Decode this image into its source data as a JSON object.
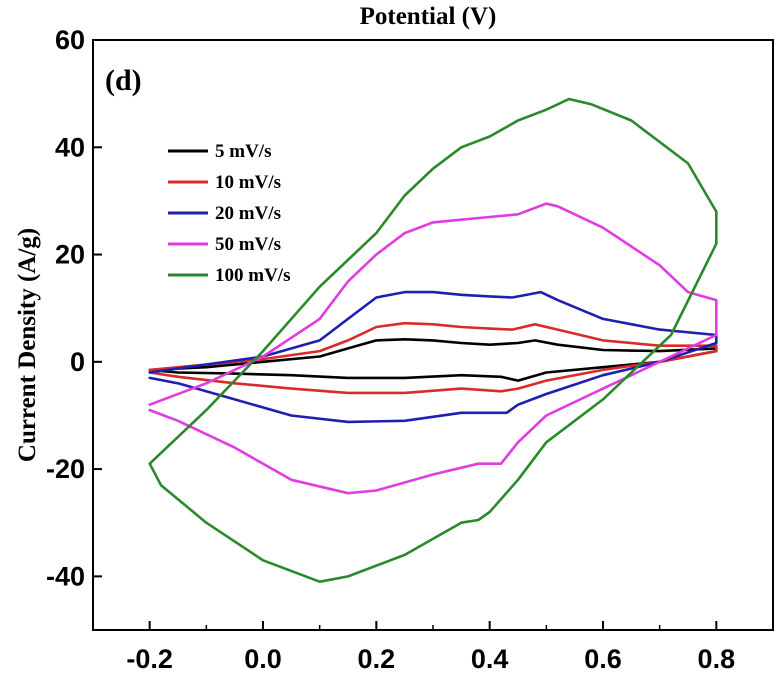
{
  "chart_data": {
    "type": "line",
    "title": "Potential (V)",
    "panel_label": "(d)",
    "xlabel": "",
    "ylabel": "Current Density (A/g)",
    "xlim": [
      -0.3,
      0.9
    ],
    "ylim": [
      -50,
      60
    ],
    "x_ticks": [
      -0.2,
      0.0,
      0.2,
      0.4,
      0.6,
      0.8
    ],
    "x_tick_labels": [
      "-0.2",
      "0.0",
      "0.2",
      "0.4",
      "0.6",
      "0.8"
    ],
    "y_ticks": [
      60,
      40,
      20,
      0,
      -20,
      -40
    ],
    "y_tick_labels": [
      "60",
      "40",
      "20",
      "0",
      "-20",
      "-40"
    ],
    "legend_position": "upper-left",
    "series": [
      {
        "name": "5 mV/s",
        "color": "#000000",
        "x": [
          -0.2,
          -0.1,
          0.0,
          0.1,
          0.15,
          0.2,
          0.25,
          0.3,
          0.35,
          0.4,
          0.45,
          0.48,
          0.52,
          0.6,
          0.7,
          0.8,
          0.8,
          0.7,
          0.6,
          0.5,
          0.45,
          0.42,
          0.35,
          0.25,
          0.15,
          0.05,
          -0.05,
          -0.15,
          -0.2
        ],
        "y": [
          -1.5,
          -1,
          0,
          1,
          2.5,
          4,
          4.2,
          4,
          3.5,
          3.2,
          3.5,
          4,
          3.2,
          2.2,
          2,
          2.5,
          2,
          0,
          -1,
          -2,
          -3.5,
          -2.8,
          -2.5,
          -3,
          -3,
          -2.5,
          -2.2,
          -2,
          -1.5
        ]
      },
      {
        "name": "10 mV/s",
        "color": "#d92b2b",
        "x": [
          -0.2,
          -0.1,
          0.0,
          0.1,
          0.15,
          0.2,
          0.25,
          0.3,
          0.35,
          0.4,
          0.44,
          0.48,
          0.52,
          0.6,
          0.7,
          0.8,
          0.8,
          0.7,
          0.6,
          0.5,
          0.45,
          0.42,
          0.35,
          0.25,
          0.15,
          0.05,
          -0.05,
          -0.15,
          -0.2
        ],
        "y": [
          -1.5,
          -0.5,
          0.5,
          2,
          4,
          6.5,
          7.2,
          7,
          6.5,
          6.2,
          6,
          7,
          6,
          4,
          3,
          3,
          2,
          0,
          -1.5,
          -3.5,
          -5,
          -5.5,
          -5,
          -5.8,
          -5.8,
          -5,
          -4,
          -2.8,
          -2
        ]
      },
      {
        "name": "20 mV/s",
        "color": "#1f1fb0",
        "x": [
          -0.2,
          -0.1,
          0.0,
          0.1,
          0.15,
          0.2,
          0.25,
          0.3,
          0.35,
          0.4,
          0.44,
          0.49,
          0.52,
          0.6,
          0.7,
          0.8,
          0.8,
          0.7,
          0.6,
          0.5,
          0.45,
          0.43,
          0.35,
          0.25,
          0.15,
          0.05,
          -0.05,
          -0.15,
          -0.2
        ],
        "y": [
          -2,
          -0.5,
          1,
          4,
          8,
          12,
          13,
          13,
          12.5,
          12.2,
          12,
          13,
          11.5,
          8,
          6,
          5,
          3.5,
          0,
          -2.5,
          -6,
          -8,
          -9.5,
          -9.5,
          -11,
          -11.2,
          -10,
          -7,
          -4,
          -3
        ]
      },
      {
        "name": "50 mV/s",
        "color": "#e23be0",
        "x": [
          -0.2,
          -0.1,
          0.0,
          0.1,
          0.15,
          0.2,
          0.25,
          0.3,
          0.35,
          0.4,
          0.45,
          0.5,
          0.52,
          0.6,
          0.7,
          0.75,
          0.8,
          0.8,
          0.7,
          0.6,
          0.5,
          0.45,
          0.42,
          0.38,
          0.3,
          0.2,
          0.15,
          0.05,
          -0.05,
          -0.15,
          -0.2
        ],
        "y": [
          -8,
          -4,
          1,
          8,
          15,
          20,
          24,
          26,
          26.5,
          27,
          27.5,
          29.5,
          29,
          25,
          18,
          13,
          11.5,
          5,
          0,
          -5,
          -10,
          -15,
          -19,
          -19,
          -21,
          -24,
          -24.5,
          -22,
          -16,
          -11,
          -9
        ]
      },
      {
        "name": "100 mV/s",
        "color": "#2a8a2a",
        "x": [
          -0.2,
          -0.1,
          0.0,
          0.1,
          0.2,
          0.25,
          0.3,
          0.35,
          0.4,
          0.45,
          0.5,
          0.54,
          0.58,
          0.65,
          0.75,
          0.8,
          0.8,
          0.72,
          0.6,
          0.5,
          0.45,
          0.4,
          0.38,
          0.35,
          0.25,
          0.15,
          0.1,
          0.0,
          -0.1,
          -0.18,
          -0.2
        ],
        "y": [
          -19,
          -9,
          2,
          14,
          24,
          31,
          36,
          40,
          42,
          45,
          47,
          49,
          48,
          45,
          37,
          28,
          22,
          5,
          -7,
          -15,
          -22,
          -28,
          -29.5,
          -30,
          -36,
          -40,
          -41,
          -37,
          -30,
          -23,
          -19
        ]
      }
    ]
  }
}
